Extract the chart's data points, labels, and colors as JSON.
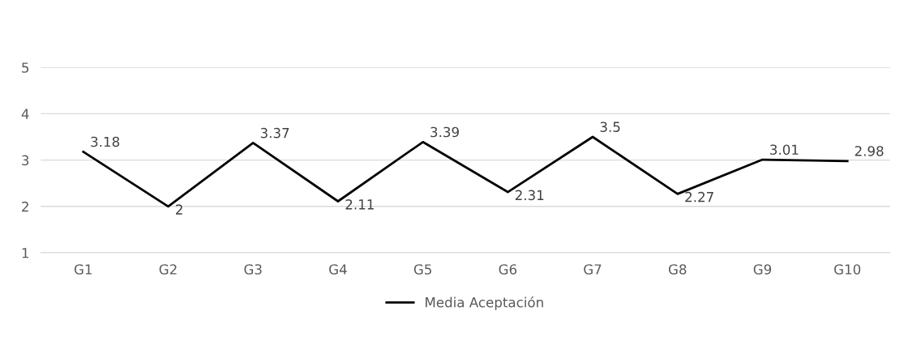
{
  "chart_data": {
    "type": "line",
    "categories": [
      "G1",
      "G2",
      "G3",
      "G4",
      "G5",
      "G6",
      "G7",
      "G8",
      "G9",
      "G10"
    ],
    "series": [
      {
        "name": "Media Aceptación",
        "color": "#000000",
        "values": [
          3.18,
          2,
          3.37,
          2.11,
          3.39,
          2.31,
          3.5,
          2.27,
          3.01,
          2.98
        ]
      }
    ],
    "ylim": [
      1,
      5
    ],
    "yticks": [
      1,
      2,
      3,
      4,
      5
    ],
    "grid": "y",
    "legend": "bottom",
    "data_labels": true,
    "marker": "none",
    "line_style": "solid"
  }
}
